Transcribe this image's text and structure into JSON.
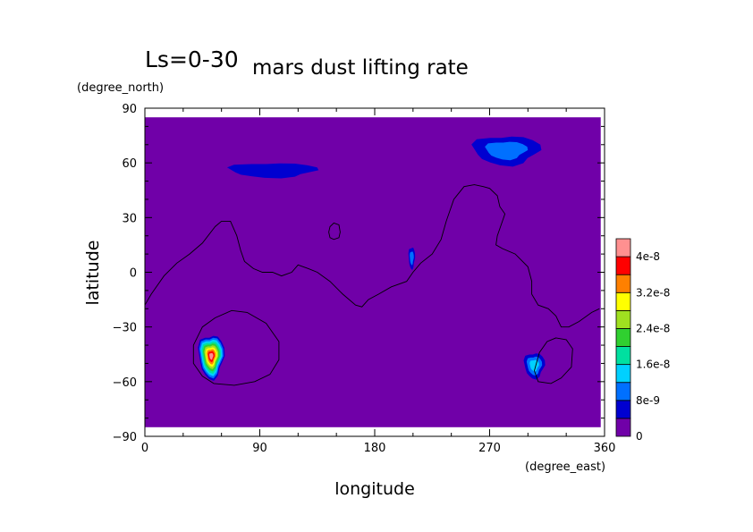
{
  "chart_data": {
    "type": "heatmap",
    "title_prefix": "Ls=0-30",
    "title": "mars dust lifting rate",
    "xlabel": "longitude",
    "ylabel": "latitude",
    "x_units": "(degree_east)",
    "y_units": "(degree_north)",
    "xlim": [
      0,
      360
    ],
    "ylim": [
      -90,
      90
    ],
    "x_ticks": [
      0,
      90,
      180,
      270,
      360
    ],
    "y_ticks": [
      -90,
      -60,
      -30,
      0,
      30,
      60,
      90
    ],
    "x_tick_labels": [
      "0",
      "90",
      "180",
      "270",
      "360"
    ],
    "y_tick_labels": [
      "−90",
      "−60",
      "−30",
      "0",
      "30",
      "60",
      "90"
    ],
    "data_lat_range": [
      -85,
      85
    ],
    "background_color": "#7000a8",
    "levels": [
      0,
      4e-09,
      8e-09,
      1.2e-08,
      1.6e-08,
      2e-08,
      2.4e-08,
      2.8e-08,
      3.2e-08,
      3.6e-08,
      4e-08,
      4.4e-08
    ],
    "level_colors": [
      "#7000a8",
      "#0000d0",
      "#0070ff",
      "#00d0ff",
      "#00e0a0",
      "#30d030",
      "#a0e020",
      "#ffff00",
      "#ff8000",
      "#ff0000",
      "#ff9090"
    ],
    "colorbar_labels": [
      "4e-8",
      "3.2e-8",
      "2.4e-8",
      "1.6e-8",
      "8e-9",
      "0"
    ],
    "colorbar_label_values": [
      4e-08,
      3.2e-08,
      2.4e-08,
      1.6e-08,
      8e-09,
      0
    ],
    "regions": [
      {
        "name": "southern-crescent-west",
        "lon": 52,
        "lat": -46,
        "peak": 4.2e-08
      },
      {
        "name": "southern-patch-east",
        "lon": 305,
        "lat": -51,
        "peak": 1.4e-08
      },
      {
        "name": "tharsis-spot",
        "lon": 209,
        "lat": 8,
        "peak": 1e-08
      },
      {
        "name": "north-band-west",
        "lon": 100,
        "lat": 56,
        "peak": 6e-09
      },
      {
        "name": "north-band-east",
        "lon": 283,
        "lat": 67,
        "peak": 1.1e-08
      }
    ],
    "contour_lines": [
      {
        "name": "topography-contour-main",
        "points": [
          [
            0,
            -18
          ],
          [
            5,
            -12
          ],
          [
            15,
            -2
          ],
          [
            25,
            5
          ],
          [
            35,
            10
          ],
          [
            45,
            16
          ],
          [
            55,
            25
          ],
          [
            60,
            28
          ],
          [
            67,
            28
          ],
          [
            72,
            20
          ],
          [
            75,
            12
          ],
          [
            78,
            6
          ],
          [
            85,
            2
          ],
          [
            92,
            0
          ],
          [
            100,
            0
          ],
          [
            107,
            -2
          ],
          [
            115,
            0
          ],
          [
            120,
            4
          ],
          [
            128,
            2
          ],
          [
            135,
            0
          ],
          [
            145,
            -5
          ],
          [
            155,
            -12
          ],
          [
            165,
            -18
          ],
          [
            170,
            -19
          ],
          [
            175,
            -15
          ],
          [
            183,
            -12
          ],
          [
            193,
            -8
          ],
          [
            205,
            -5
          ],
          [
            210,
            0
          ],
          [
            216,
            5
          ],
          [
            225,
            10
          ],
          [
            232,
            18
          ],
          [
            236,
            28
          ],
          [
            242,
            40
          ],
          [
            250,
            47
          ],
          [
            258,
            48
          ],
          [
            265,
            47
          ],
          [
            270,
            46
          ],
          [
            276,
            42
          ],
          [
            278,
            36
          ],
          [
            282,
            32
          ],
          [
            280,
            28
          ],
          [
            276,
            20
          ],
          [
            275,
            15
          ],
          [
            280,
            13
          ],
          [
            290,
            10
          ],
          [
            300,
            3
          ],
          [
            303,
            -5
          ],
          [
            303,
            -12
          ],
          [
            308,
            -18
          ],
          [
            316,
            -20
          ],
          [
            322,
            -24
          ],
          [
            326,
            -30
          ],
          [
            332,
            -30
          ],
          [
            340,
            -27
          ],
          [
            350,
            -22
          ],
          [
            356,
            -20
          ]
        ]
      },
      {
        "name": "small-ring-contour",
        "closed": true,
        "points": [
          [
            144,
            22
          ],
          [
            145,
            25
          ],
          [
            148,
            27
          ],
          [
            152,
            26
          ],
          [
            153,
            22
          ],
          [
            152,
            19
          ],
          [
            148,
            18
          ],
          [
            145,
            19
          ]
        ]
      },
      {
        "name": "southern-ring-contour-west",
        "closed": true,
        "points": [
          [
            80,
            -22
          ],
          [
            95,
            -28
          ],
          [
            105,
            -38
          ],
          [
            105,
            -48
          ],
          [
            98,
            -56
          ],
          [
            86,
            -60
          ],
          [
            70,
            -62
          ],
          [
            54,
            -61
          ],
          [
            45,
            -57
          ],
          [
            38,
            -50
          ],
          [
            38,
            -40
          ],
          [
            45,
            -30
          ],
          [
            55,
            -25
          ],
          [
            68,
            -21
          ]
        ]
      },
      {
        "name": "southern-ring-contour-east",
        "closed": true,
        "points": [
          [
            322,
            -36
          ],
          [
            330,
            -37
          ],
          [
            335,
            -42
          ],
          [
            334,
            -52
          ],
          [
            326,
            -58
          ],
          [
            318,
            -61
          ],
          [
            308,
            -60
          ],
          [
            305,
            -54
          ],
          [
            309,
            -44
          ],
          [
            315,
            -38
          ]
        ]
      }
    ]
  }
}
